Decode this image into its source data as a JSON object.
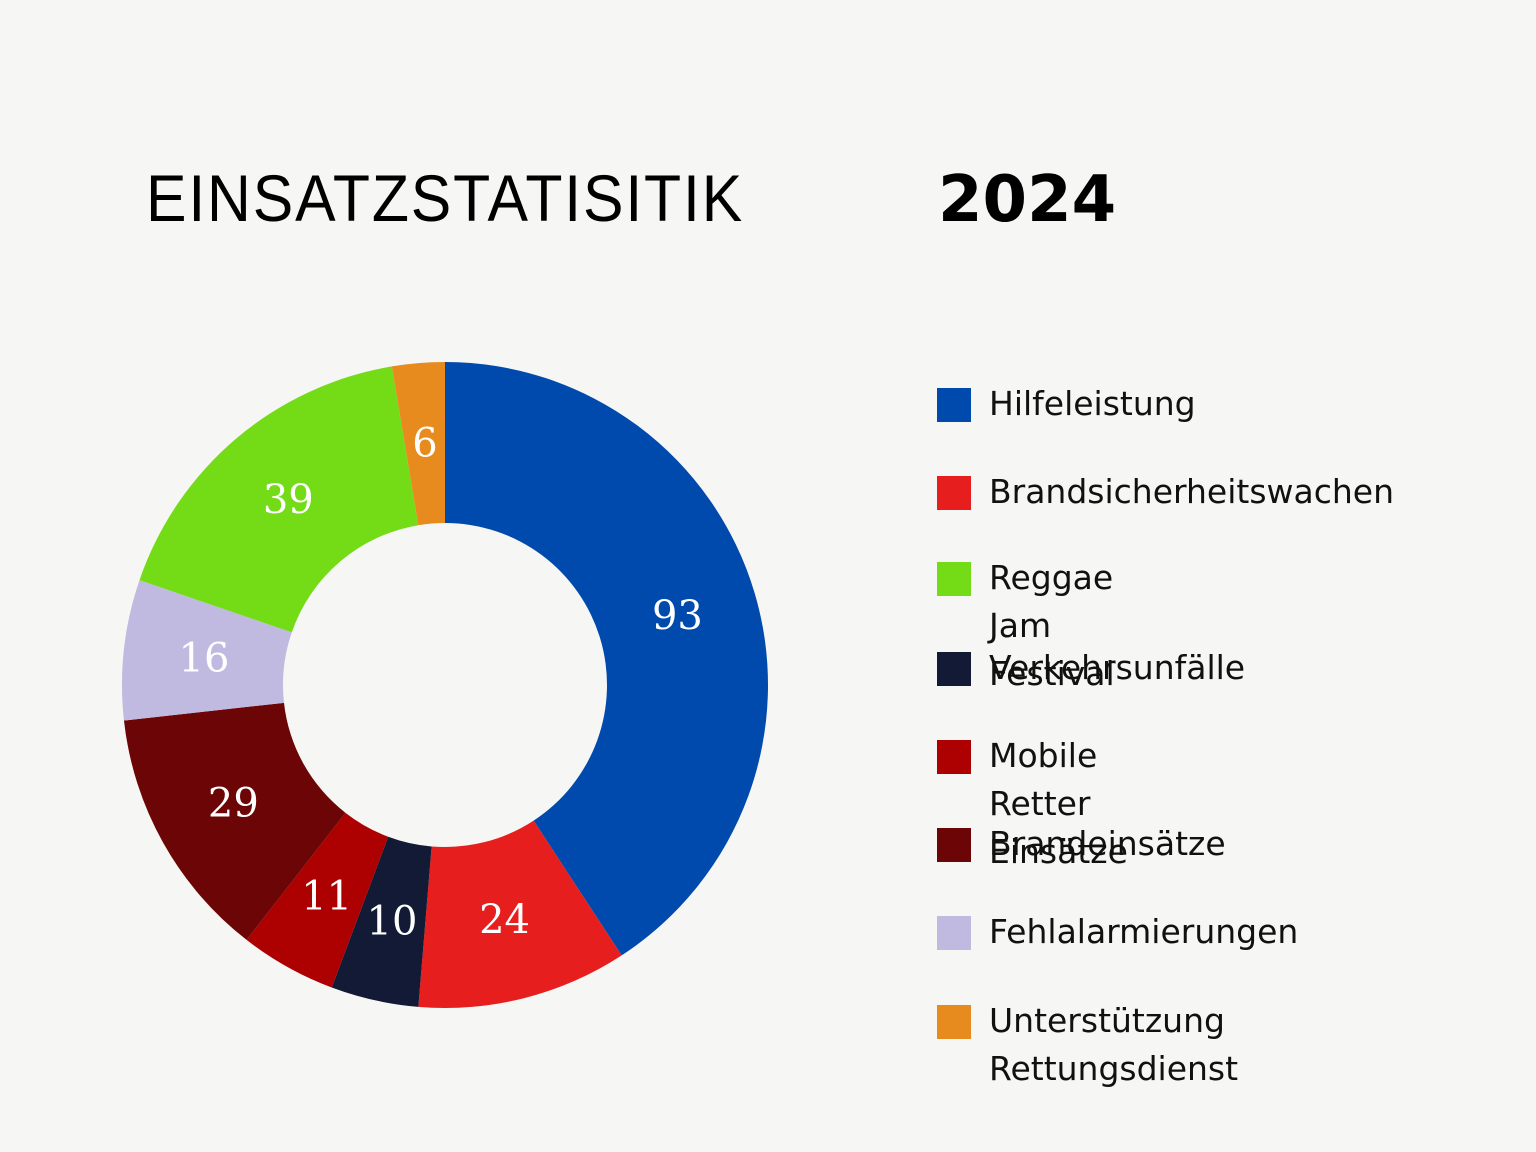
{
  "header": {
    "title": "EINSATZSTATISITIK",
    "year": "2024"
  },
  "chart_data": {
    "type": "pie",
    "subtype": "donut",
    "title": "EINSATZSTATISITIK 2024",
    "categories": [
      "Hilfeleistung",
      "Brandsicherheitswachen",
      "Verkehrsunfälle",
      "Mobile Retter Einsätze",
      "Brandeinsätze",
      "Fehlalarmierungen",
      "Reggae Jam Festival",
      "Unterstützung Rettungsdienst"
    ],
    "values": [
      93,
      24,
      10,
      11,
      29,
      16,
      39,
      6
    ],
    "colors": [
      "#004aad",
      "#e61e1e",
      "#121a36",
      "#ad0000",
      "#6c0505",
      "#c0bae0",
      "#74db17",
      "#e88b1e"
    ],
    "data_labels": [
      "93",
      "24",
      "10",
      "11",
      "29",
      "16",
      "39",
      "6"
    ],
    "start_angle": "top (12 o'clock), clockwise",
    "legend_position": "right"
  },
  "legend": {
    "items": [
      {
        "label": "Hilfeleistung",
        "color": "#004aad"
      },
      {
        "label": "Brandsicherheitswachen",
        "color": "#e61e1e"
      },
      {
        "label": "Reggae Jam Festival",
        "color": "#74db17"
      },
      {
        "label": "Verkehrsunfälle",
        "color": "#121a36"
      },
      {
        "label": "Mobile Retter Einsätze",
        "color": "#ad0000"
      },
      {
        "label": "Brandeinsätze",
        "color": "#6c0505"
      },
      {
        "label": "Fehlalarmierungen",
        "color": "#c0bae0"
      },
      {
        "label": "Unterstützung\nRettungsdienst",
        "color": "#e88b1e"
      }
    ]
  },
  "colors": {
    "background": "#f6f6f4",
    "text": "#000000",
    "label_text": "#ffffff"
  }
}
